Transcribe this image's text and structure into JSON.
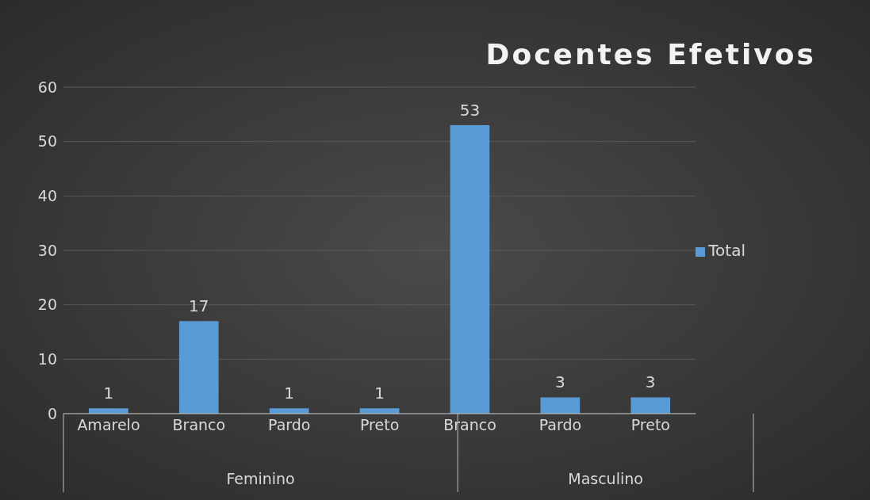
{
  "chart_data": {
    "type": "bar",
    "title": "Docentes Efetivos",
    "categories": [
      "Amarelo",
      "Branco",
      "Pardo",
      "Preto",
      "Branco",
      "Pardo",
      "Preto"
    ],
    "series": [
      {
        "name": "Total",
        "color": "#5b9bd5",
        "values": [
          1,
          17,
          1,
          1,
          53,
          3,
          3
        ]
      }
    ],
    "annotations": [
      "Feminino",
      "Masculino"
    ],
    "ylim": [
      0,
      60
    ],
    "yticks": [
      0,
      10,
      20,
      30,
      40,
      50,
      60
    ],
    "grid": "y",
    "legend": "right",
    "data_labels": true
  }
}
